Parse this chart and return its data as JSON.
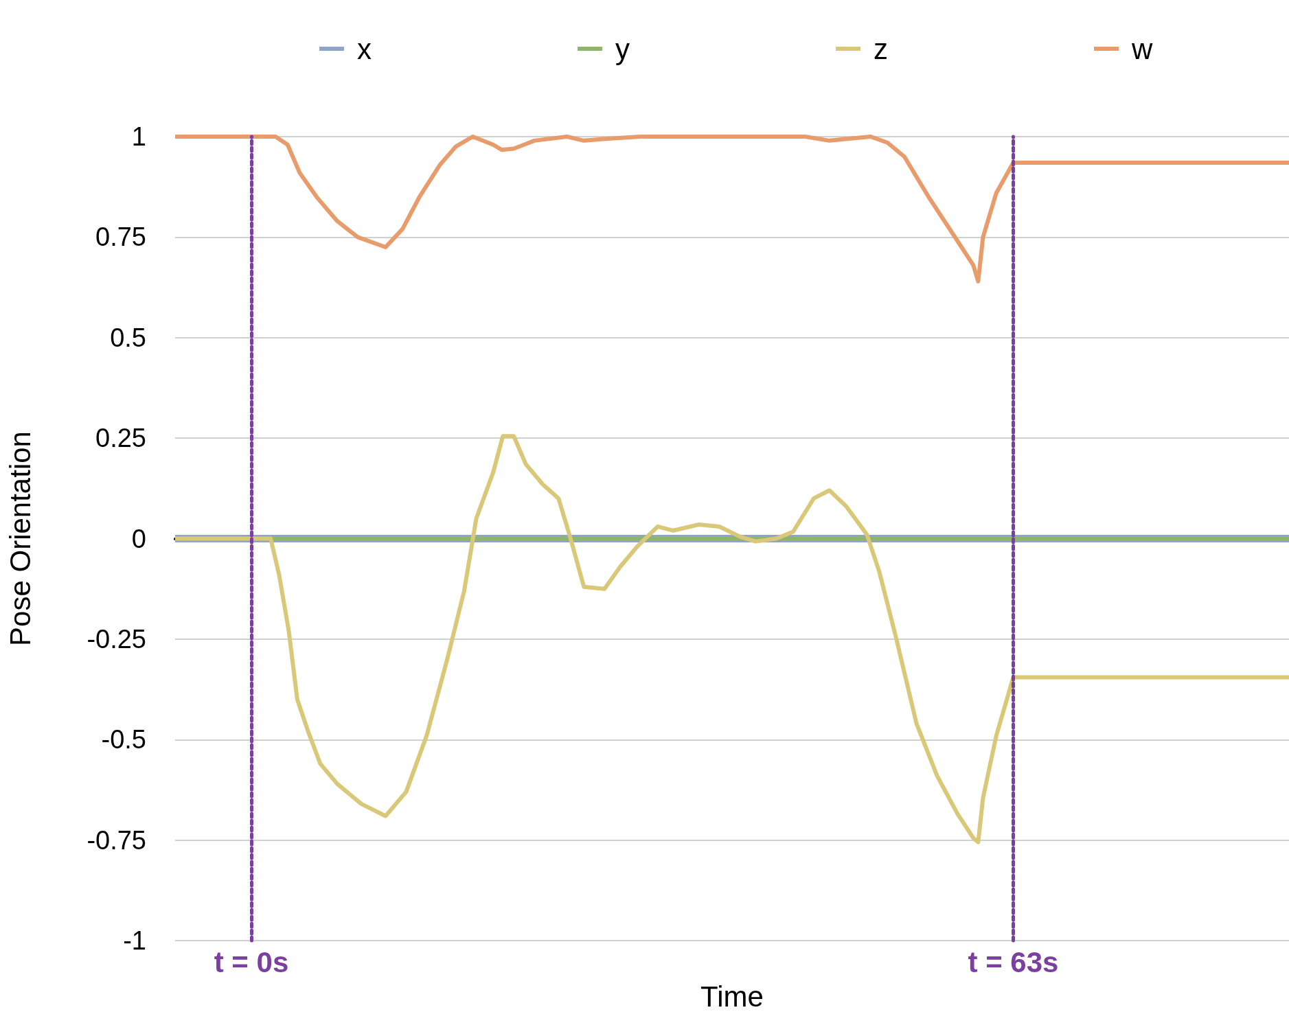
{
  "chart_data": {
    "type": "line",
    "xlabel": "Time",
    "ylabel": "Pose Orientation",
    "xlim": [
      -6.3,
      85.8
    ],
    "ylim": [
      -1,
      1
    ],
    "yticks": [
      -1,
      -0.75,
      -0.5,
      -0.25,
      0,
      0.25,
      0.5,
      0.75,
      1
    ],
    "tick_labels": "y",
    "grid": "y",
    "legend": "top",
    "marker": "none",
    "line_style": "solid",
    "ref_lines": [
      {
        "axis": "x",
        "value": 0,
        "label": "t = 0s",
        "color": "#7b3fa0",
        "line_style": "dotted"
      },
      {
        "axis": "x",
        "value": 63,
        "label": "t = 63s",
        "color": "#7b3fa0",
        "line_style": "dotted"
      }
    ],
    "series": [
      {
        "name": "x",
        "color": "#8ea4c8",
        "x": [
          -6.3,
          85.8
        ],
        "values": [
          0,
          0
        ]
      },
      {
        "name": "y",
        "color": "#8fb56b",
        "x": [
          -6.3,
          85.8
        ],
        "values": [
          0,
          0
        ]
      },
      {
        "name": "z",
        "color": "#d9c878",
        "x": [
          -6.3,
          1.6,
          2.3,
          3.1,
          3.8,
          4.7,
          5.7,
          7.1,
          9.1,
          11.1,
          12.8,
          14.5,
          16.2,
          17.6,
          18.6,
          20.0,
          20.8,
          21.7,
          22.7,
          24.1,
          25.4,
          26.4,
          27.5,
          29.2,
          30.5,
          31.9,
          33.6,
          34.9,
          37.0,
          38.7,
          40.4,
          41.7,
          43.4,
          44.8,
          46.5,
          47.8,
          49.2,
          50.9,
          51.9,
          53.3,
          55.0,
          56.7,
          58.4,
          59.7,
          60.1,
          60.5,
          61.6,
          63.0,
          85.8
        ],
        "values": [
          0,
          0,
          -0.09,
          -0.23,
          -0.4,
          -0.48,
          -0.56,
          -0.61,
          -0.66,
          -0.69,
          -0.63,
          -0.49,
          -0.3,
          -0.13,
          0.05,
          0.165,
          0.255,
          0.255,
          0.185,
          0.135,
          0.1,
          0,
          -0.12,
          -0.125,
          -0.07,
          -0.02,
          0.03,
          0.02,
          0.035,
          0.03,
          0.005,
          -0.007,
          0,
          0.017,
          0.1,
          0.12,
          0.08,
          0.01,
          -0.08,
          -0.245,
          -0.46,
          -0.59,
          -0.685,
          -0.745,
          -0.755,
          -0.645,
          -0.49,
          -0.345,
          -0.345
        ]
      },
      {
        "name": "w",
        "color": "#e89b6b",
        "x": [
          -6.3,
          2.0,
          3.0,
          4.0,
          5.4,
          7.1,
          8.8,
          11.1,
          12.5,
          13.9,
          15.6,
          16.9,
          18.3,
          20.0,
          20.7,
          21.7,
          23.4,
          26.1,
          27.5,
          29.5,
          32.2,
          45.8,
          47.8,
          51.2,
          52.6,
          54.0,
          56.0,
          58.4,
          59.7,
          60.1,
          60.5,
          61.6,
          63.0,
          85.8
        ],
        "values": [
          1,
          1,
          0.98,
          0.91,
          0.85,
          0.79,
          0.75,
          0.725,
          0.77,
          0.85,
          0.93,
          0.975,
          1,
          0.98,
          0.967,
          0.97,
          0.99,
          1,
          0.99,
          0.995,
          1,
          1,
          0.99,
          1,
          0.985,
          0.95,
          0.85,
          0.74,
          0.68,
          0.64,
          0.75,
          0.86,
          0.935,
          0.935
        ]
      }
    ]
  }
}
